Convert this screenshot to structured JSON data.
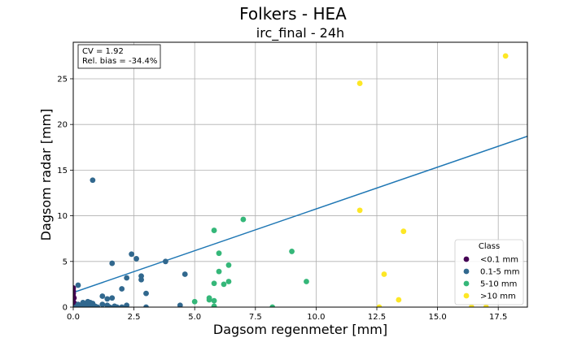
{
  "chart_data": {
    "type": "scatter",
    "suptitle": "Folkers - HEA",
    "title": "irc_final - 24h",
    "xlabel": "Dagsom regenmeter [mm]",
    "ylabel": "Dagsom radar [mm]",
    "xlim": [
      0,
      18.7
    ],
    "ylim": [
      0,
      29
    ],
    "xticks": [
      0,
      2.5,
      5,
      7.5,
      10,
      12.5,
      15,
      17.5
    ],
    "xtick_labels": [
      "0.0",
      "2.5",
      "5.0",
      "7.5",
      "10.0",
      "12.5",
      "15.0",
      "17.5"
    ],
    "yticks": [
      0,
      5,
      10,
      15,
      20,
      25
    ],
    "ytick_labels": [
      "0",
      "5",
      "10",
      "15",
      "20",
      "25"
    ],
    "grid": true,
    "annotation": [
      "CV = 1.92",
      "Rel. bias = -34.4%"
    ],
    "fit_line": {
      "slope": 0.915,
      "intercept": 1.6,
      "color": "#1f77b4"
    },
    "legend": {
      "title": "Class",
      "position": "lower-right"
    },
    "series": [
      {
        "name": "<0.1 mm",
        "color": "#440154",
        "points": [
          [
            0.0,
            0.0
          ],
          [
            0.0,
            0.3
          ],
          [
            0.0,
            0.6
          ],
          [
            0.0,
            0.9
          ],
          [
            0.0,
            1.2
          ],
          [
            0.0,
            1.5
          ],
          [
            0.0,
            1.8
          ],
          [
            0.0,
            2.1
          ],
          [
            0.05,
            0.1
          ],
          [
            0.05,
            0.4
          ],
          [
            0.03,
            1.0
          ]
        ]
      },
      {
        "name": "0.1-5 mm",
        "color": "#31688e",
        "points": [
          [
            0.1,
            0.0
          ],
          [
            0.2,
            2.4
          ],
          [
            0.2,
            0.3
          ],
          [
            0.3,
            0.1
          ],
          [
            0.4,
            0.5
          ],
          [
            0.5,
            0.0
          ],
          [
            0.5,
            0.3
          ],
          [
            0.6,
            0.6
          ],
          [
            0.7,
            0.2
          ],
          [
            0.7,
            0.5
          ],
          [
            0.8,
            13.9
          ],
          [
            0.8,
            0.4
          ],
          [
            0.9,
            0.1
          ],
          [
            1.0,
            0.0
          ],
          [
            1.2,
            1.2
          ],
          [
            1.2,
            0.3
          ],
          [
            1.4,
            0.9
          ],
          [
            1.4,
            0.2
          ],
          [
            1.5,
            0.0
          ],
          [
            1.6,
            4.8
          ],
          [
            1.6,
            1.0
          ],
          [
            1.7,
            0.1
          ],
          [
            1.8,
            0.0
          ],
          [
            2.0,
            2.0
          ],
          [
            2.0,
            0.0
          ],
          [
            2.2,
            3.2
          ],
          [
            2.2,
            0.2
          ],
          [
            2.4,
            5.8
          ],
          [
            2.6,
            5.3
          ],
          [
            2.8,
            3.4
          ],
          [
            2.8,
            3.0
          ],
          [
            3.0,
            1.5
          ],
          [
            3.0,
            0.0
          ],
          [
            3.8,
            5.0
          ],
          [
            4.4,
            0.2
          ],
          [
            4.6,
            3.6
          ]
        ]
      },
      {
        "name": "5-10 mm",
        "color": "#35b779",
        "points": [
          [
            5.0,
            0.6
          ],
          [
            5.6,
            1.0
          ],
          [
            5.6,
            0.8
          ],
          [
            5.8,
            8.4
          ],
          [
            5.8,
            2.6
          ],
          [
            5.8,
            0.7
          ],
          [
            5.8,
            0.1
          ],
          [
            6.0,
            5.9
          ],
          [
            6.0,
            3.9
          ],
          [
            6.2,
            2.5
          ],
          [
            6.4,
            4.6
          ],
          [
            6.4,
            2.8
          ],
          [
            7.0,
            9.6
          ],
          [
            8.2,
            0.0
          ],
          [
            9.0,
            6.1
          ],
          [
            9.6,
            2.8
          ]
        ]
      },
      {
        "name": ">10 mm",
        "color": "#fde725",
        "points": [
          [
            11.8,
            24.5
          ],
          [
            11.8,
            10.6
          ],
          [
            12.6,
            0.0
          ],
          [
            12.8,
            3.6
          ],
          [
            13.4,
            0.8
          ],
          [
            13.6,
            8.3
          ],
          [
            16.4,
            0.0
          ],
          [
            17.0,
            0.0
          ],
          [
            17.8,
            27.5
          ]
        ]
      }
    ]
  }
}
